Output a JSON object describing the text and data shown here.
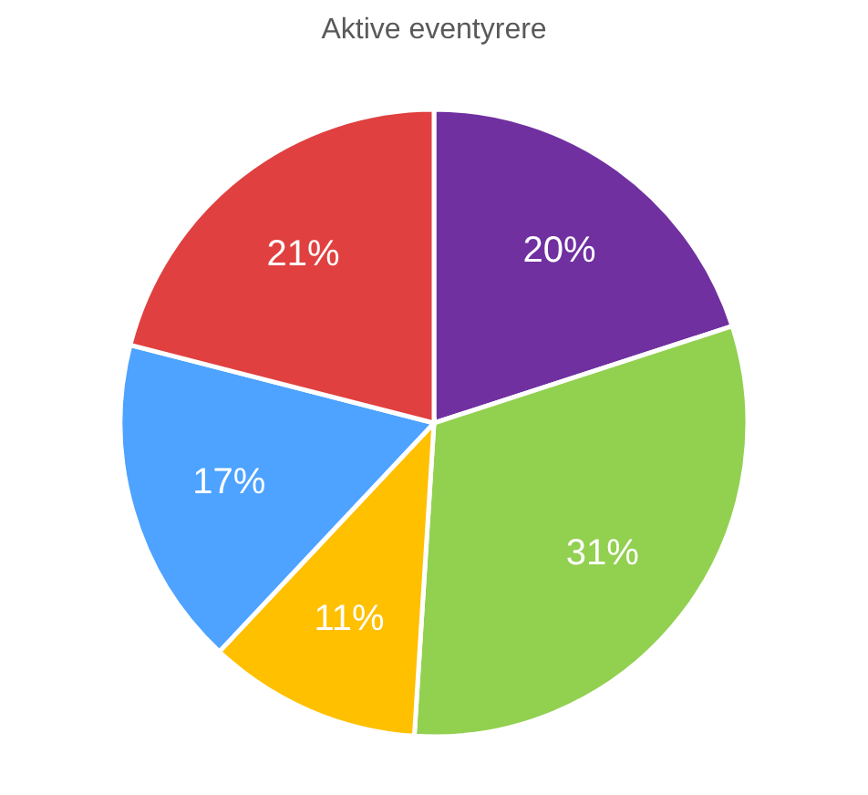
{
  "chart_data": {
    "type": "pie",
    "title": "Aktive eventyrere",
    "categories": [
      null,
      null,
      null,
      null,
      null
    ],
    "values": [
      20,
      31,
      11,
      17,
      21
    ],
    "colors": [
      "#7030a0",
      "#92d050",
      "#ffc000",
      "#4da3ff",
      "#e04040"
    ],
    "value_labels": [
      "20%",
      "31%",
      "11%",
      "17%",
      "21%"
    ],
    "legend": false
  }
}
